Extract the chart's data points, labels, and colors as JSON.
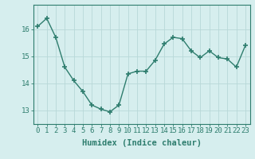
{
  "x": [
    0,
    1,
    2,
    3,
    4,
    5,
    6,
    7,
    8,
    9,
    10,
    11,
    12,
    13,
    14,
    15,
    16,
    17,
    18,
    19,
    20,
    21,
    22,
    23
  ],
  "y": [
    16.1,
    16.4,
    15.7,
    14.6,
    14.1,
    13.7,
    13.2,
    13.05,
    12.95,
    13.2,
    14.35,
    14.45,
    14.45,
    14.85,
    15.45,
    15.7,
    15.65,
    15.2,
    14.95,
    15.2,
    14.95,
    14.9,
    14.6,
    15.4
  ],
  "line_color": "#2e7d6e",
  "marker": "+",
  "marker_size": 5,
  "bg_color": "#d6eeee",
  "grid_color": "#b8d8d8",
  "xlabel": "Humidex (Indice chaleur)",
  "ylim": [
    12.5,
    16.9
  ],
  "xlim": [
    -0.5,
    23.5
  ],
  "yticks": [
    13,
    14,
    15,
    16
  ],
  "xticks": [
    0,
    1,
    2,
    3,
    4,
    5,
    6,
    7,
    8,
    9,
    10,
    11,
    12,
    13,
    14,
    15,
    16,
    17,
    18,
    19,
    20,
    21,
    22,
    23
  ],
  "xlabel_fontsize": 7.5,
  "tick_fontsize": 6.5,
  "linewidth": 1.0,
  "marker_color": "#2e7d6e",
  "spine_color": "#2e7d6e",
  "tick_color": "#2e7d6e",
  "label_color": "#2e7d6e"
}
